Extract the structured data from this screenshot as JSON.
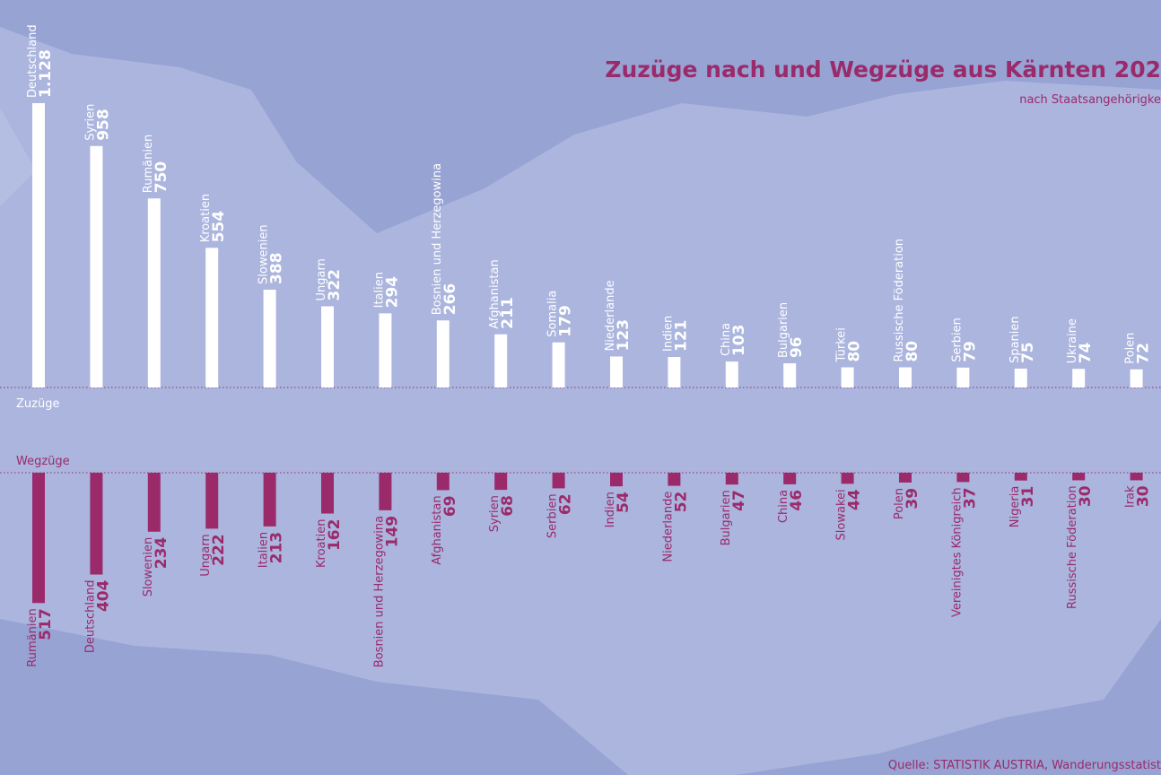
{
  "title": "Zuzüge nach und Wegzüge aus Kärnten 202",
  "subtitle": "nach Staatsangehörigke",
  "source": "Quelle: STATISTIK AUSTRIA, Wanderungsstatist",
  "chart_data": [
    {
      "type": "bar",
      "direction": "up",
      "label": "Zuzüge",
      "color": "#ffffff",
      "categories": [
        "Deutschland",
        "Syrien",
        "Rumänien",
        "Kroatien",
        "Slowenien",
        "Ungarn",
        "Italien",
        "Bosnien und Herzegowina",
        "Afghanistan",
        "Somalia",
        "Niederlande",
        "Indien",
        "China",
        "Bulgarien",
        "Türkei",
        "Russische Föderation",
        "Serbien",
        "Spanien",
        "Ukraine",
        "Polen"
      ],
      "values": [
        1128,
        958,
        750,
        554,
        388,
        322,
        294,
        266,
        211,
        179,
        123,
        121,
        103,
        96,
        80,
        80,
        79,
        75,
        74,
        72
      ],
      "value_labels": [
        "1.128",
        "958",
        "750",
        "554",
        "388",
        "322",
        "294",
        "266",
        "211",
        "179",
        "123",
        "121",
        "103",
        "96",
        "80",
        "80",
        "79",
        "75",
        "74",
        "72"
      ]
    },
    {
      "type": "bar",
      "direction": "down",
      "label": "Wegzüge",
      "color": "#9b2a6a",
      "categories": [
        "Rumänien",
        "Deutschland",
        "Slowenien",
        "Ungarn",
        "Italien",
        "Kroatien",
        "Bosnien und Herzegowina",
        "Afghanistan",
        "Syrien",
        "Serbien",
        "Indien",
        "Niederlande",
        "Bulgarien",
        "China",
        "Slowakei",
        "Polen",
        "Vereinigtes Königreich",
        "Nigeria",
        "Russische Föderation",
        "Irak"
      ],
      "values": [
        517,
        404,
        234,
        222,
        213,
        162,
        149,
        69,
        68,
        62,
        54,
        52,
        47,
        46,
        44,
        39,
        37,
        31,
        30,
        30
      ]
    }
  ]
}
